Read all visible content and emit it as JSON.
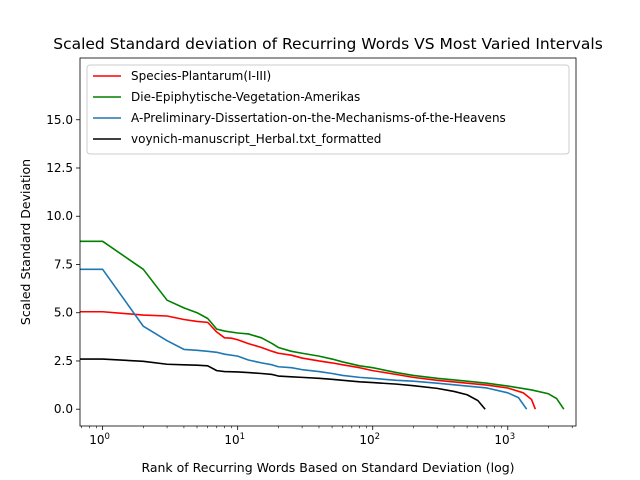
{
  "chart_data": {
    "type": "line",
    "title": "Scaled Standard deviation of Recurring Words VS Most Varied Intervals",
    "xlabel": "Rank of Recurring Words Based on Standard Deviation (log)",
    "ylabel": "Scaled Standard Deviation",
    "xscale": "log",
    "xlim": [
      0.68,
      3200
    ],
    "ylim": [
      -0.87,
      18.2
    ],
    "yticks": [
      0.0,
      2.5,
      5.0,
      7.5,
      10.0,
      12.5,
      15.0
    ],
    "ytick_labels": [
      "0.0",
      "2.5",
      "5.0",
      "7.5",
      "10.0",
      "12.5",
      "15.0"
    ],
    "xticks": [
      1,
      10,
      100,
      1000
    ],
    "grid": false,
    "legend_position": "top-left",
    "series": [
      {
        "name": "Species-Plantarum(I-III)",
        "color": "#ff0000",
        "x": [
          0.5,
          1,
          2,
          3,
          4,
          5,
          6,
          7,
          8,
          9,
          10,
          12,
          15,
          18,
          20,
          25,
          30,
          40,
          50,
          60,
          80,
          100,
          150,
          200,
          300,
          500,
          700,
          1000,
          1300,
          1500,
          1600
        ],
        "y": [
          5.05,
          5.05,
          4.88,
          4.83,
          4.65,
          4.55,
          4.5,
          4.0,
          3.7,
          3.68,
          3.6,
          3.4,
          3.2,
          3.0,
          2.9,
          2.8,
          2.65,
          2.5,
          2.4,
          2.3,
          2.15,
          2.0,
          1.8,
          1.65,
          1.5,
          1.35,
          1.25,
          1.1,
          0.85,
          0.5,
          0.0
        ]
      },
      {
        "name": "Die-Epiphytische-Vegetation-Amerikas",
        "color": "#008000",
        "x": [
          0.5,
          1,
          2,
          3,
          4,
          5,
          6,
          7,
          8,
          10,
          12,
          15,
          18,
          20,
          25,
          30,
          40,
          50,
          60,
          80,
          100,
          150,
          200,
          300,
          500,
          700,
          1000,
          1500,
          2000,
          2300,
          2600
        ],
        "y": [
          8.7,
          8.7,
          7.25,
          5.65,
          5.25,
          5.0,
          4.7,
          4.15,
          4.05,
          3.95,
          3.9,
          3.7,
          3.4,
          3.2,
          3.0,
          2.9,
          2.75,
          2.6,
          2.45,
          2.25,
          2.15,
          1.9,
          1.75,
          1.6,
          1.45,
          1.35,
          1.2,
          1.0,
          0.8,
          0.55,
          0.0
        ]
      },
      {
        "name": "A-Preliminary-Dissertation-on-the-Mechanisms-of-the-Heavens",
        "color": "#1f77b4",
        "x": [
          0.5,
          1,
          2,
          3,
          4,
          5,
          6,
          7,
          8,
          10,
          12,
          15,
          18,
          20,
          25,
          30,
          40,
          50,
          60,
          80,
          100,
          150,
          200,
          300,
          500,
          700,
          1000,
          1200,
          1380
        ],
        "y": [
          7.25,
          7.25,
          4.3,
          3.55,
          3.1,
          3.05,
          3.0,
          2.95,
          2.85,
          2.75,
          2.55,
          2.4,
          2.3,
          2.2,
          2.15,
          2.05,
          1.95,
          1.85,
          1.75,
          1.65,
          1.6,
          1.5,
          1.45,
          1.35,
          1.2,
          1.1,
          0.85,
          0.6,
          0.0
        ]
      },
      {
        "name": "voynich-manuscript_Herbal.txt_formatted",
        "color": "#000000",
        "x": [
          0.5,
          1,
          2,
          3,
          4,
          5,
          6,
          7,
          8,
          10,
          12,
          15,
          18,
          20,
          25,
          30,
          40,
          50,
          60,
          80,
          100,
          150,
          200,
          300,
          400,
          500,
          600,
          680
        ],
        "y": [
          2.6,
          2.6,
          2.48,
          2.33,
          2.3,
          2.28,
          2.25,
          2.0,
          1.95,
          1.93,
          1.9,
          1.85,
          1.8,
          1.72,
          1.68,
          1.65,
          1.6,
          1.55,
          1.5,
          1.42,
          1.38,
          1.3,
          1.22,
          1.08,
          0.92,
          0.75,
          0.45,
          0.0
        ]
      }
    ]
  }
}
